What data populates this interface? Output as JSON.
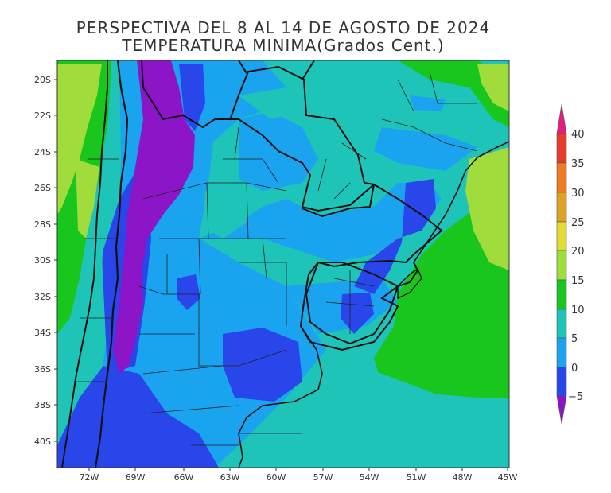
{
  "title": {
    "line1": "PERSPECTIVA DEL 8 AL 14 DE AGOSTO DE 2024",
    "line2": "TEMPERATURA MINIMA(Grados Cent.)"
  },
  "map": {
    "lat_labels": [
      "20S",
      "22S",
      "24S",
      "26S",
      "28S",
      "30S",
      "32S",
      "34S",
      "36S",
      "38S",
      "40S"
    ],
    "lon_labels": [
      "72W",
      "69W",
      "66W",
      "63W",
      "60W",
      "57W",
      "54W",
      "51W",
      "48W",
      "45W"
    ]
  },
  "colorbar": {
    "labels": [
      "40",
      "35",
      "30",
      "25",
      "20",
      "15",
      "10",
      "5",
      "0",
      "−5"
    ],
    "colors": [
      "#e0207a",
      "#e83a2c",
      "#ee7a22",
      "#dfa227",
      "#e2da35",
      "#9fdc3c",
      "#18c61e",
      "#1ec4b8",
      "#1aa3ef",
      "#2846ea",
      "#8c15c7"
    ]
  }
}
